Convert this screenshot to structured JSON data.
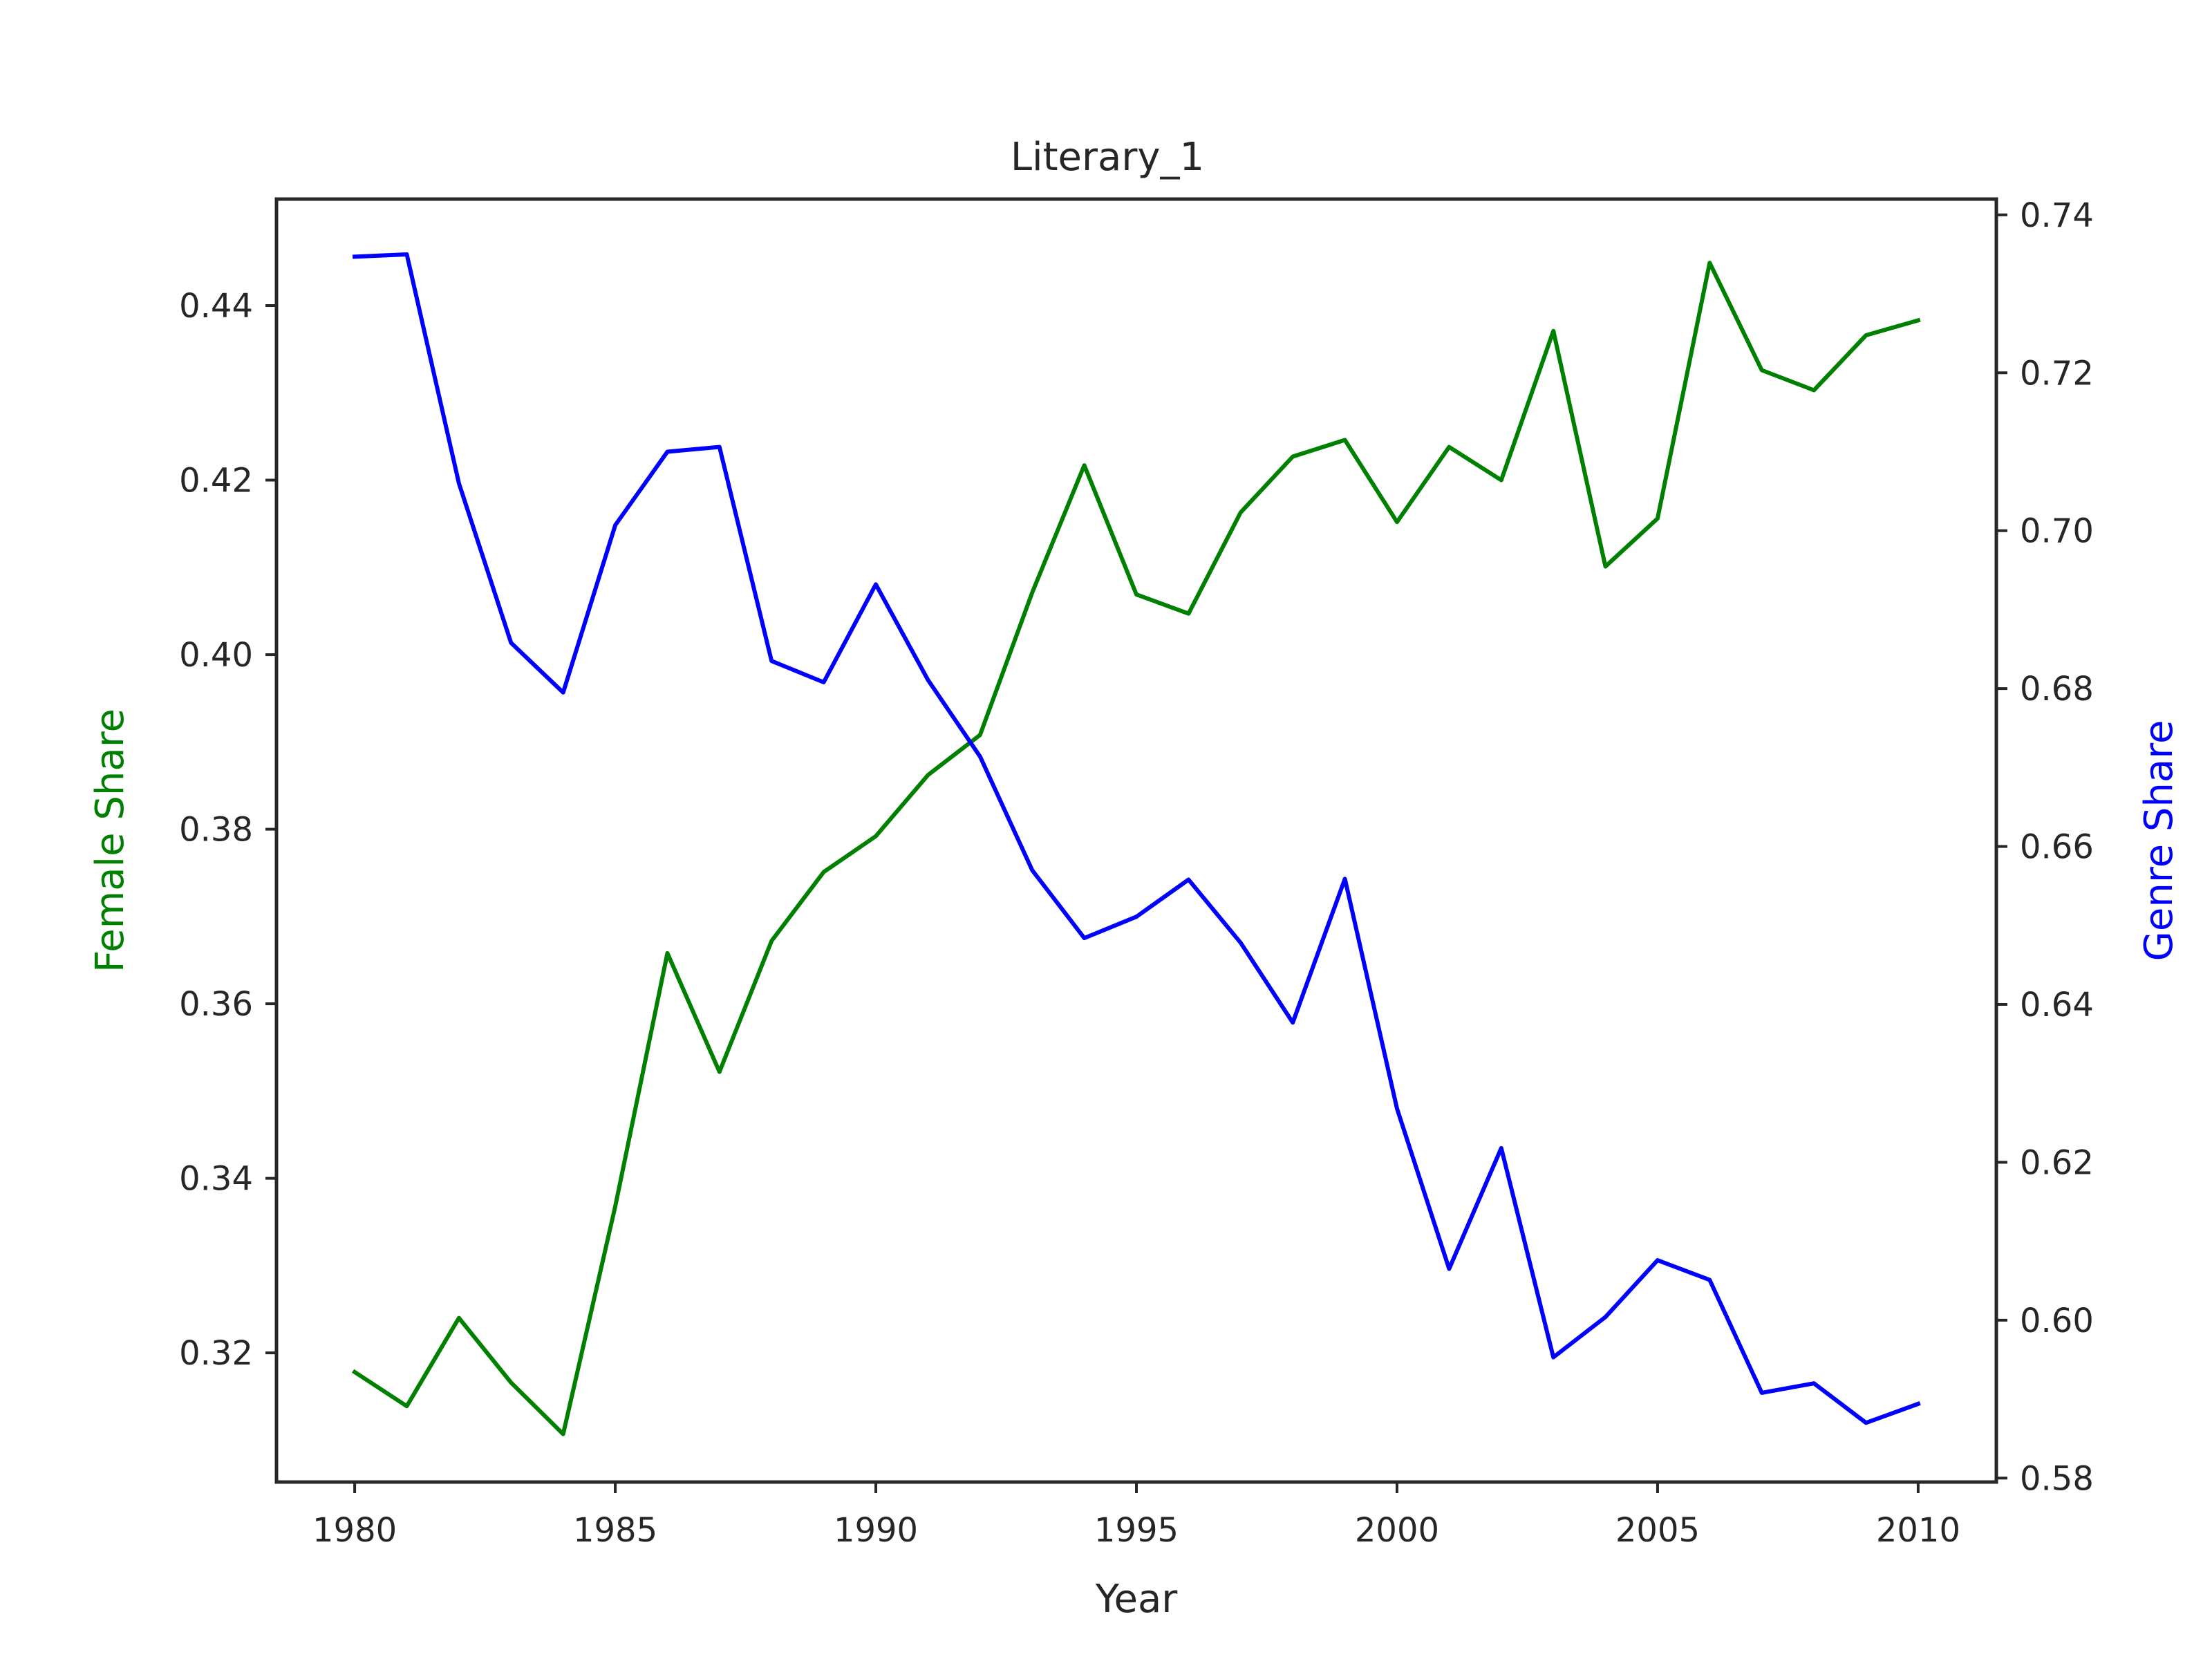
{
  "chart_data": {
    "type": "line",
    "title": "Literary_1",
    "xlabel": "Year",
    "ylabel_left": "Female Share",
    "ylabel_right": "Genre Share",
    "xlim": [
      1978.5,
      2011.5
    ],
    "ylim_left": [
      0.3052,
      0.4522
    ],
    "ylim_right": [
      0.5795,
      0.742
    ],
    "xticks": [
      1980,
      1985,
      1990,
      1995,
      2000,
      2005,
      2010
    ],
    "xtick_labels": [
      "1980",
      "1985",
      "1990",
      "1995",
      "2000",
      "2005",
      "2010"
    ],
    "yticks_left": [
      0.32,
      0.34,
      0.36,
      0.38,
      0.4,
      0.42,
      0.44
    ],
    "ytick_labels_left": [
      "0.32",
      "0.34",
      "0.36",
      "0.38",
      "0.40",
      "0.42",
      "0.44"
    ],
    "yticks_right": [
      0.58,
      0.6,
      0.62,
      0.64,
      0.66,
      0.68,
      0.7,
      0.72,
      0.74
    ],
    "ytick_labels_right": [
      "0.58",
      "0.60",
      "0.62",
      "0.64",
      "0.66",
      "0.68",
      "0.70",
      "0.72",
      "0.74"
    ],
    "grid": false,
    "x": [
      1980,
      1981,
      1982,
      1983,
      1984,
      1985,
      1986,
      1987,
      1988,
      1989,
      1990,
      1991,
      1992,
      1993,
      1994,
      1995,
      1996,
      1997,
      1998,
      1999,
      2000,
      2001,
      2002,
      2003,
      2004,
      2005,
      2006,
      2007,
      2008,
      2009,
      2010
    ],
    "series": [
      {
        "axis": "left",
        "color": "#008000",
        "values": [
          0.3178,
          0.3139,
          0.324,
          0.3166,
          0.3107,
          0.3368,
          0.3658,
          0.3522,
          0.3672,
          0.3751,
          0.3792,
          0.3862,
          0.3908,
          0.4071,
          0.4217,
          0.4069,
          0.4047,
          0.4163,
          0.4227,
          0.4246,
          0.4152,
          0.4238,
          0.42,
          0.4371,
          0.4101,
          0.4156,
          0.4449,
          0.4326,
          0.4303,
          0.4366,
          0.4383
        ]
      },
      {
        "axis": "right",
        "color": "#0000ff",
        "values": [
          0.7347,
          0.735,
          0.706,
          0.6858,
          0.6795,
          0.7007,
          0.71,
          0.7106,
          0.6835,
          0.6808,
          0.6932,
          0.6811,
          0.6714,
          0.657,
          0.6484,
          0.6511,
          0.6558,
          0.6478,
          0.6377,
          0.6559,
          0.6268,
          0.6065,
          0.6218,
          0.5953,
          0.6004,
          0.6076,
          0.6051,
          0.5908,
          0.592,
          0.587,
          0.5894
        ]
      }
    ]
  }
}
